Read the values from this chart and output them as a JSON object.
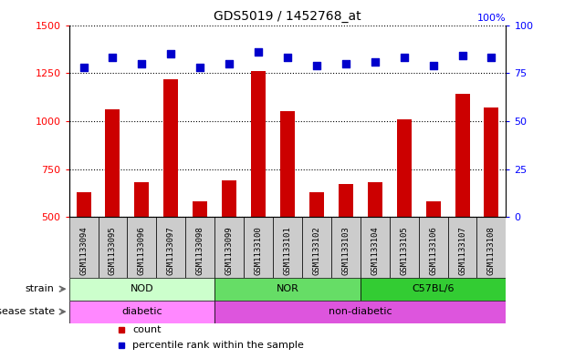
{
  "title": "GDS5019 / 1452768_at",
  "samples": [
    "GSM1133094",
    "GSM1133095",
    "GSM1133096",
    "GSM1133097",
    "GSM1133098",
    "GSM1133099",
    "GSM1133100",
    "GSM1133101",
    "GSM1133102",
    "GSM1133103",
    "GSM1133104",
    "GSM1133105",
    "GSM1133106",
    "GSM1133107",
    "GSM1133108"
  ],
  "counts": [
    630,
    1060,
    680,
    1220,
    580,
    690,
    1260,
    1050,
    630,
    670,
    680,
    1010,
    580,
    1140,
    1070
  ],
  "percentiles": [
    78,
    83,
    80,
    85,
    78,
    80,
    86,
    83,
    79,
    80,
    81,
    83,
    79,
    84,
    83
  ],
  "ylim_left": [
    500,
    1500
  ],
  "ylim_right": [
    0,
    100
  ],
  "yticks_left": [
    500,
    750,
    1000,
    1250,
    1500
  ],
  "yticks_right": [
    0,
    25,
    50,
    75,
    100
  ],
  "bar_color": "#cc0000",
  "dot_color": "#0000cc",
  "strain_groups": [
    {
      "label": "NOD",
      "start": 0,
      "end": 5,
      "color": "#ccffcc"
    },
    {
      "label": "NOR",
      "start": 5,
      "end": 10,
      "color": "#66dd66"
    },
    {
      "label": "C57BL/6",
      "start": 10,
      "end": 15,
      "color": "#33cc33"
    }
  ],
  "disease_groups": [
    {
      "label": "diabetic",
      "start": 0,
      "end": 5,
      "color": "#ff88ff"
    },
    {
      "label": "non-diabetic",
      "start": 5,
      "end": 15,
      "color": "#dd55dd"
    }
  ],
  "strain_label": "strain",
  "disease_label": "disease state",
  "legend_count_label": "count",
  "legend_pct_label": "percentile rank within the sample",
  "background_color": "#ffffff",
  "bar_width": 0.5,
  "xtick_bg": "#cccccc",
  "xtick_fontsize": 6.5,
  "title_fontsize": 10
}
